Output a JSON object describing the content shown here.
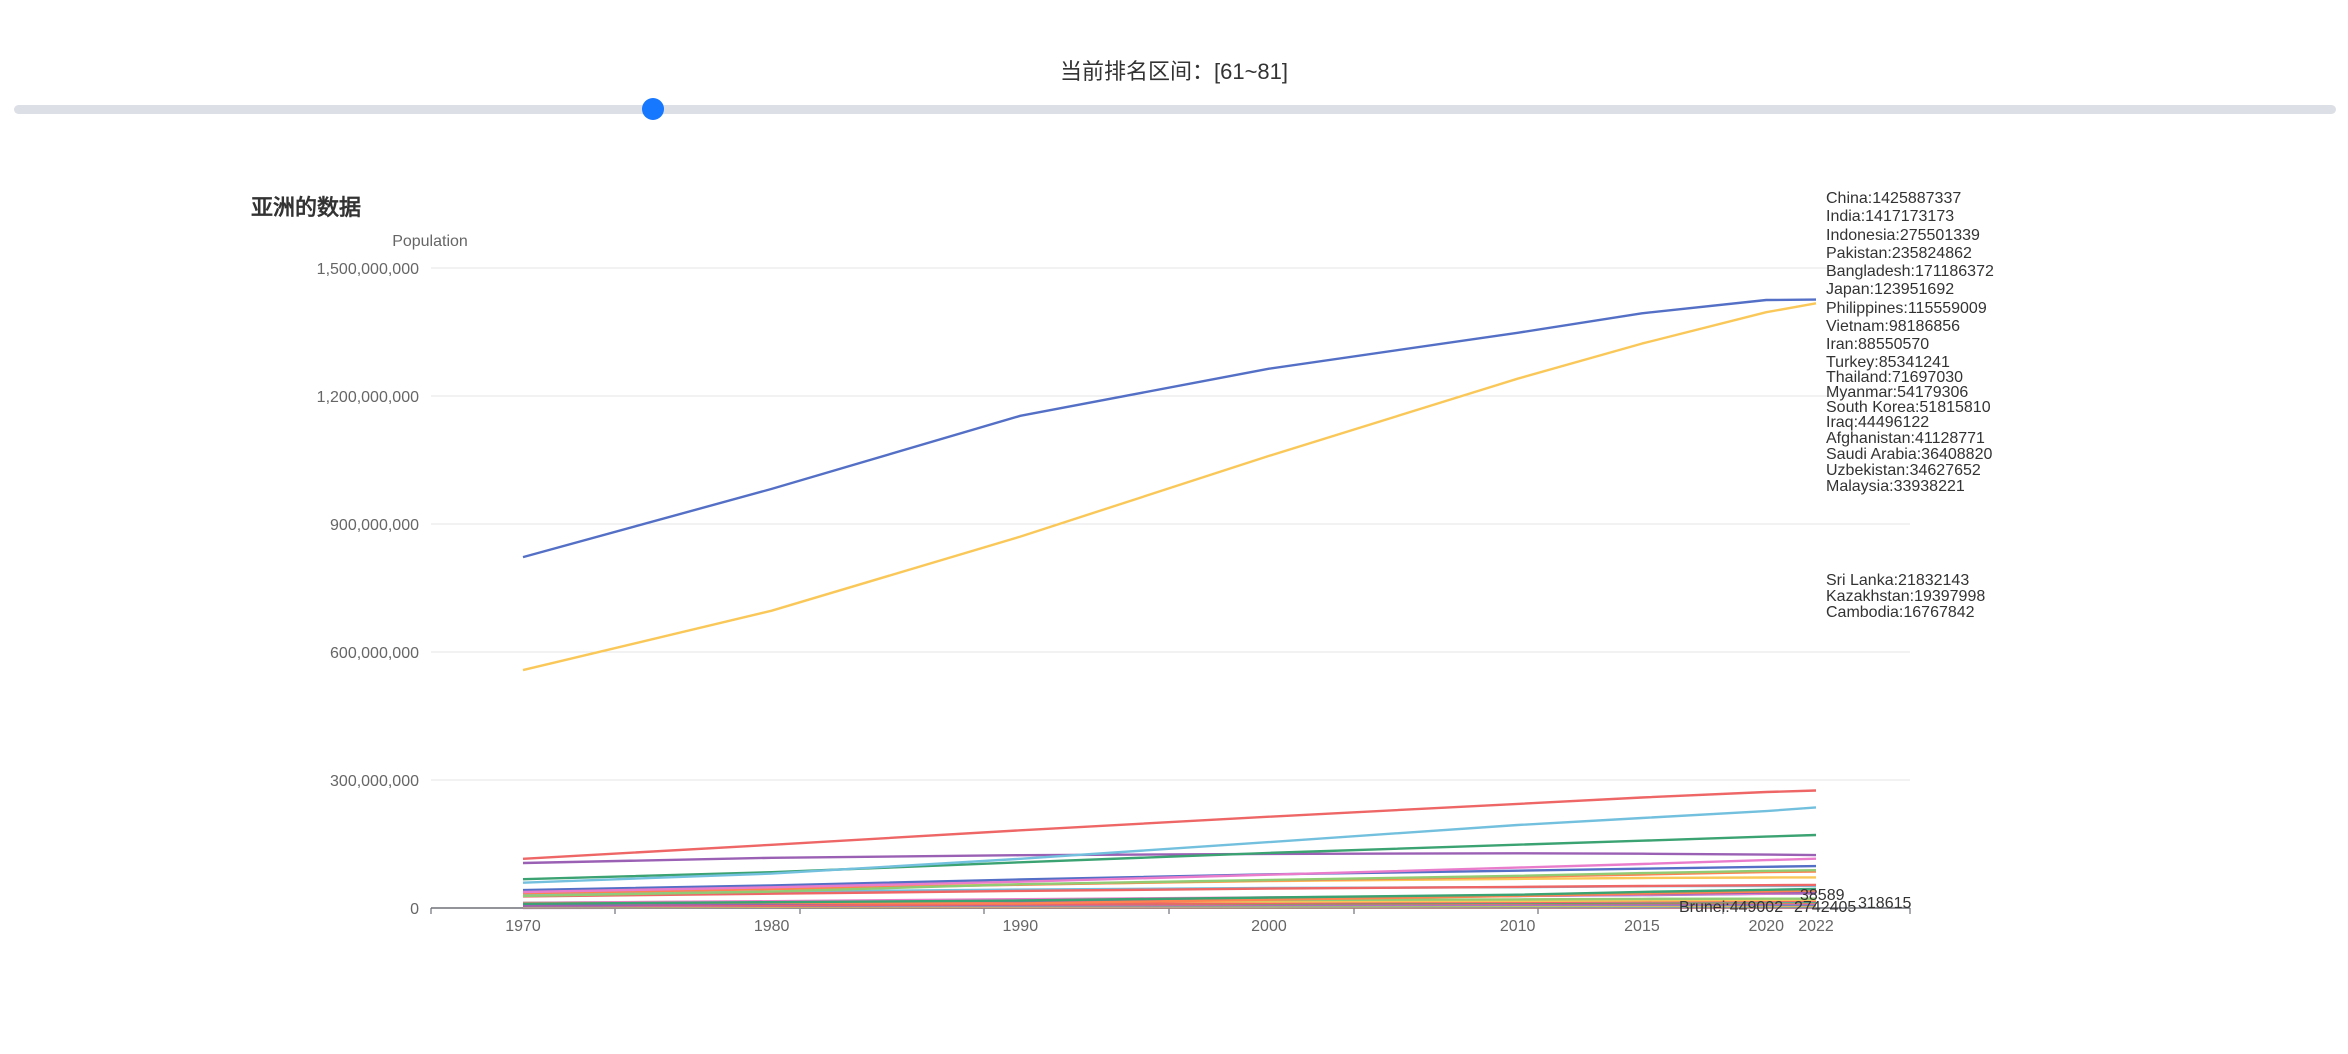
{
  "header": {
    "range_label": "当前排名区间：[61~81]"
  },
  "slider": {
    "value": 0.275
  },
  "chart_data": {
    "type": "line",
    "title": "亚洲的数据",
    "ylabel": "Population",
    "xlabel": "",
    "x": [
      1970,
      1980,
      1990,
      2000,
      2010,
      2015,
      2020,
      2022
    ],
    "xticks": [
      "1970",
      "1980",
      "1990",
      "2000",
      "2010",
      "2015",
      "2020",
      "2022"
    ],
    "yticks": [
      "0",
      "300,000,000",
      "600,000,000",
      "900,000,000",
      "1,200,000,000",
      "1,500,000,000"
    ],
    "ylim": [
      0,
      1500000000
    ],
    "grid": true,
    "series": [
      {
        "name": "China",
        "color": "#5470c6",
        "values": [
          822534450,
          982372466,
          1153704252,
          1264099069,
          1348191368,
          1393715448,
          1424929781,
          1425887337
        ]
      },
      {
        "name": "India",
        "color": "#fac858",
        "values": [
          557501301,
          696828385,
          870452165,
          1059633675,
          1240613620,
          1322866505,
          1396387127,
          1417173173
        ]
      },
      {
        "name": "Indonesia",
        "color": "#ee6666",
        "values": [
          115228394,
          148177096,
          182159874,
          214072421,
          244016173,
          259091970,
          271857970,
          275501339
        ]
      },
      {
        "name": "Pakistan",
        "color": "#73c0de",
        "values": [
          59290872,
          80624057,
          115414069,
          154369924,
          194454498,
          210969298,
          227196741,
          235824862
        ]
      },
      {
        "name": "Bangladesh",
        "color": "#3ba272",
        "values": [
          67541860,
          83929765,
          107147651,
          129193327,
          148391139,
          157830000,
          167420951,
          171186372
        ]
      },
      {
        "name": "Japan",
        "color": "#9a60b4",
        "values": [
          105416839,
          117624196,
          123686321,
          126803861,
          128105431,
          127276000,
          125244761,
          123951692
        ]
      },
      {
        "name": "Philippines",
        "color": "#ea7ccc",
        "values": [
          37435586,
          48419546,
          61558898,
          77958223,
          94636700,
          103031365,
          112190977,
          115559009
        ]
      },
      {
        "name": "Vietnam",
        "color": "#5470c6",
        "values": [
          41928849,
          52968270,
          66912613,
          79001142,
          87411012,
          92191398,
          96648685,
          98186856
        ]
      },
      {
        "name": "Iran",
        "color": "#91cc75",
        "values": [
          28449705,
          38520664,
          55793629,
          65544383,
          75373855,
          81790841,
          87290193,
          88550570
        ]
      },
      {
        "name": "Turkey",
        "color": "#fc8452",
        "values": [
          34772031,
          44089069,
          54324142,
          64113547,
          73195345,
          78529409,
          84135428,
          85341241
        ]
      },
      {
        "name": "Thailand",
        "color": "#fac858",
        "values": [
          35791728,
          45737753,
          55228410,
          63066603,
          68270489,
          70294397,
          71475664,
          71697030
        ]
      },
      {
        "name": "Myanmar",
        "color": "#ee6666",
        "values": [
          27284112,
          33465781,
          40099553,
          45538332,
          49390988,
          51483949,
          53423198,
          54179306
        ]
      },
      {
        "name": "South Korea",
        "color": "#73c0de",
        "values": [
          32601143,
          38170501,
          43225100,
          46788591,
          48813042,
          50994401,
          51844690,
          51815810
        ]
      },
      {
        "name": "Iraq",
        "color": "#3ba272",
        "values": [
          9811347,
          13653369,
          17658381,
          24628858,
          31264875,
          37757813,
          42556984,
          44496122
        ]
      },
      {
        "name": "Afghanistan",
        "color": "#fc8452",
        "values": [
          10752971,
          12486631,
          10694796,
          19542982,
          28189672,
          33753499,
          38972230,
          41128771
        ]
      },
      {
        "name": "Saudi Arabia",
        "color": "#9a60b4",
        "values": [
          6106191,
          10171710,
          15210817,
          20663843,
          29411929,
          32749848,
          35997107,
          36408820
        ]
      },
      {
        "name": "Uzbekistan",
        "color": "#ea7ccc",
        "values": [
          12011361,
          15947129,
          20579100,
          24769955,
          28614227,
          30949417,
          33526656,
          34627652
        ]
      },
      {
        "name": "Malaysia",
        "color": "#5470c6",
        "values": [
          10306508,
          13215707,
          17517054,
          22945150,
          28208028,
          30270962,
          33199993,
          33938221
        ]
      },
      {
        "name": "Sri Lanka",
        "color": "#91cc75",
        "values": [
          12388769,
          14943645,
          17204094,
          18776371,
          20261738,
          21336697,
          21715079,
          21832143
        ]
      },
      {
        "name": "Kazakhstan",
        "color": "#fac858",
        "values": [
          12265305,
          14172710,
          16866563,
          15236253,
          16627837,
          17835909,
          18979243,
          19397998
        ]
      },
      {
        "name": "Cambodia",
        "color": "#ee6666",
        "values": [
          6708525,
          6198959,
          8975597,
          12118841,
          14363532,
          15417523,
          16396860,
          16767842
        ]
      },
      {
        "name": "",
        "color": "#73c0de",
        "values": [
          6800000,
          8900000,
          11200000,
          12800000,
          14200000,
          15100000,
          15800000,
          16100000
        ]
      },
      {
        "name": "",
        "color": "#3ba272",
        "values": [
          6200000,
          7900000,
          9600000,
          11100000,
          12400000,
          13200000,
          13900000,
          14200000
        ]
      },
      {
        "name": "",
        "color": "#fc8452",
        "values": [
          5800000,
          7200000,
          8800000,
          9900000,
          10900000,
          11600000,
          12100000,
          12400000
        ]
      },
      {
        "name": "",
        "color": "#9a60b4",
        "values": [
          5200000,
          6500000,
          7800000,
          8700000,
          9500000,
          10100000,
          10600000,
          10800000
        ]
      },
      {
        "name": "",
        "color": "#ea7ccc",
        "values": [
          4600000,
          5800000,
          6900000,
          7700000,
          8400000,
          8900000,
          9300000,
          9500000
        ]
      },
      {
        "name": "",
        "color": "#5470c6",
        "values": [
          4100000,
          5100000,
          6100000,
          6800000,
          7400000,
          7800000,
          8200000,
          8300000
        ]
      },
      {
        "name": "",
        "color": "#91cc75",
        "values": [
          3500000,
          4300000,
          5100000,
          5700000,
          6200000,
          6600000,
          6900000,
          7000000
        ]
      },
      {
        "name": "",
        "color": "#fac858",
        "values": [
          2900000,
          3600000,
          4300000,
          4800000,
          5200000,
          5500000,
          5800000,
          5900000
        ]
      },
      {
        "name": "",
        "color": "#ee6666",
        "values": [
          2300000,
          2900000,
          3500000,
          3900000,
          4300000,
          4500000,
          4700000,
          4800000
        ]
      },
      {
        "name": "",
        "color": "#73c0de",
        "values": [
          1700000,
          2200000,
          2700000,
          3000000,
          3300000,
          3500000,
          3700000,
          3800000
        ]
      },
      {
        "name": "",
        "color": "#3ba272",
        "values": [
          1200000,
          1600000,
          2000000,
          2300000,
          2500000,
          2700000,
          2800000,
          2900000
        ]
      },
      {
        "name": "",
        "color": "#fc8452",
        "values": [
          700000,
          1000000,
          1300000,
          1500000,
          1700000,
          1800000,
          1900000,
          2000000
        ]
      },
      {
        "name": "",
        "color": "#9a60b4",
        "values": [
          300000,
          500000,
          700000,
          900000,
          1000000,
          1100000,
          1200000,
          1200000
        ]
      }
    ],
    "end_labels": [
      "China:1425887337",
      "India:1417173173",
      "Indonesia:275501339",
      "Pakistan:235824862",
      "Bangladesh:171186372",
      "Japan:123951692",
      "Philippines:115559009",
      "Vietnam:98186856",
      "Iran:88550570",
      "Turkey:85341241",
      "Thailand:71697030",
      "Myanmar:54179306",
      "South Korea:51815810",
      "Iraq:44496122",
      "Afghanistan:41128771",
      "Saudi Arabia:36408820",
      "Uzbekistan:34627652",
      "Malaysia:33938221",
      "Sri Lanka:21832143",
      "Kazakhstan:19397998",
      "Cambodia:16767842"
    ],
    "overlap_labels": [
      "Brunei:449002",
      "2742405",
      "38589",
      "318615"
    ]
  }
}
